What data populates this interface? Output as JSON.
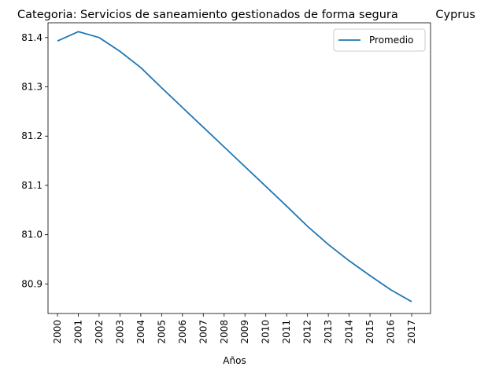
{
  "chart_data": {
    "type": "line",
    "title_left": "Categoria: Servicios de saneamiento gestionados de forma segura",
    "title_right": "Cyprus",
    "xlabel": "Años",
    "ylabel": "",
    "categories": [
      "2000",
      "2001",
      "2002",
      "2003",
      "2004",
      "2005",
      "2006",
      "2007",
      "2008",
      "2009",
      "2010",
      "2011",
      "2012",
      "2013",
      "2014",
      "2015",
      "2016",
      "2017"
    ],
    "series": [
      {
        "name": "Promedio",
        "color": "#1f77b4",
        "values": [
          81.393,
          81.412,
          81.4,
          81.372,
          81.339,
          81.298,
          81.258,
          81.218,
          81.178,
          81.138,
          81.098,
          81.058,
          81.017,
          80.98,
          80.947,
          80.917,
          80.888,
          80.864
        ]
      }
    ],
    "ylim": [
      80.84,
      81.43
    ],
    "yticks": [
      80.9,
      81.0,
      81.1,
      81.2,
      81.3,
      81.4
    ],
    "ytick_labels": [
      "80.9",
      "81.0",
      "81.1",
      "81.2",
      "81.3",
      "81.4"
    ],
    "grid": false,
    "legend_position": "top-right"
  }
}
